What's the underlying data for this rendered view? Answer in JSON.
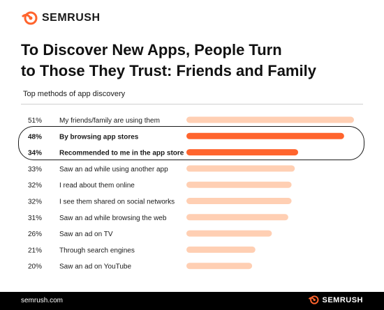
{
  "brand": {
    "name": "SEMRUSH",
    "url": "semrush.com",
    "color": "#ff642d"
  },
  "title_line1": "To Discover New Apps, People Turn",
  "title_line2": "to Those They Trust: Friends and Family",
  "subtitle": "Top methods of app discovery",
  "colors": {
    "highlight": "#ff642d",
    "normal": "#ffcfb3"
  },
  "chart_data": {
    "type": "bar",
    "orientation": "horizontal",
    "title": "Top methods of app discovery",
    "categories": [
      "My friends/family are using them",
      "By browsing app stores",
      "Recommended to me in the app store",
      "Saw an ad while using another app",
      "I read about them online",
      "I see them shared on social networks",
      "Saw an ad while browsing the web",
      "Saw an ad on TV",
      "Through search engines",
      "Saw an ad on YouTube"
    ],
    "values": [
      51,
      48,
      34,
      33,
      32,
      32,
      31,
      26,
      21,
      20
    ],
    "value_labels": [
      "51%",
      "48%",
      "34%",
      "33%",
      "32%",
      "32%",
      "31%",
      "26%",
      "21%",
      "20%"
    ],
    "highlighted": [
      false,
      true,
      true,
      false,
      false,
      false,
      false,
      false,
      false,
      false
    ],
    "xlim": [
      0,
      51
    ],
    "grid": false,
    "legend": "none"
  }
}
